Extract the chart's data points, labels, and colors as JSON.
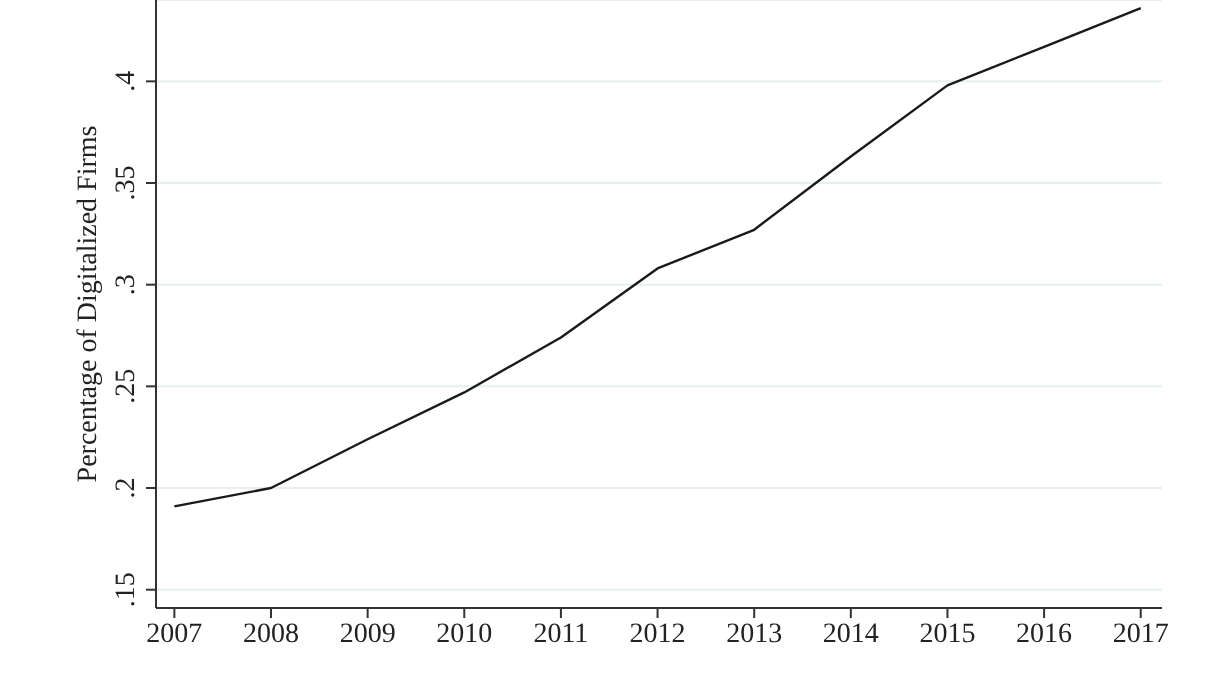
{
  "chart_data": {
    "type": "line",
    "ylabel": "Percentage of Digitalized Firms",
    "x": [
      2007,
      2008,
      2009,
      2010,
      2011,
      2012,
      2013,
      2014,
      2015,
      2016,
      2017
    ],
    "series": [
      {
        "color": "#1a1a1a",
        "values": [
          0.191,
          0.2,
          0.224,
          0.247,
          0.274,
          0.308,
          0.327,
          0.363,
          0.398,
          0.417,
          0.436
        ]
      }
    ],
    "xlim": [
      2006.81,
      2017.22
    ],
    "xticks": [
      2007,
      2008,
      2009,
      2010,
      2011,
      2012,
      2013,
      2014,
      2015,
      2016,
      2017
    ],
    "ylim": [
      0.141,
      0.44
    ],
    "yticks": [
      {
        "value": 0.15,
        "label": ".15"
      },
      {
        "value": 0.2,
        "label": ".2"
      },
      {
        "value": 0.25,
        "label": ".25"
      },
      {
        "value": 0.3,
        "label": ".3"
      },
      {
        "value": 0.35,
        "label": ".35"
      },
      {
        "value": 0.4,
        "label": ".4"
      }
    ],
    "grid": "y",
    "marker": "none",
    "line_style": "solid"
  }
}
